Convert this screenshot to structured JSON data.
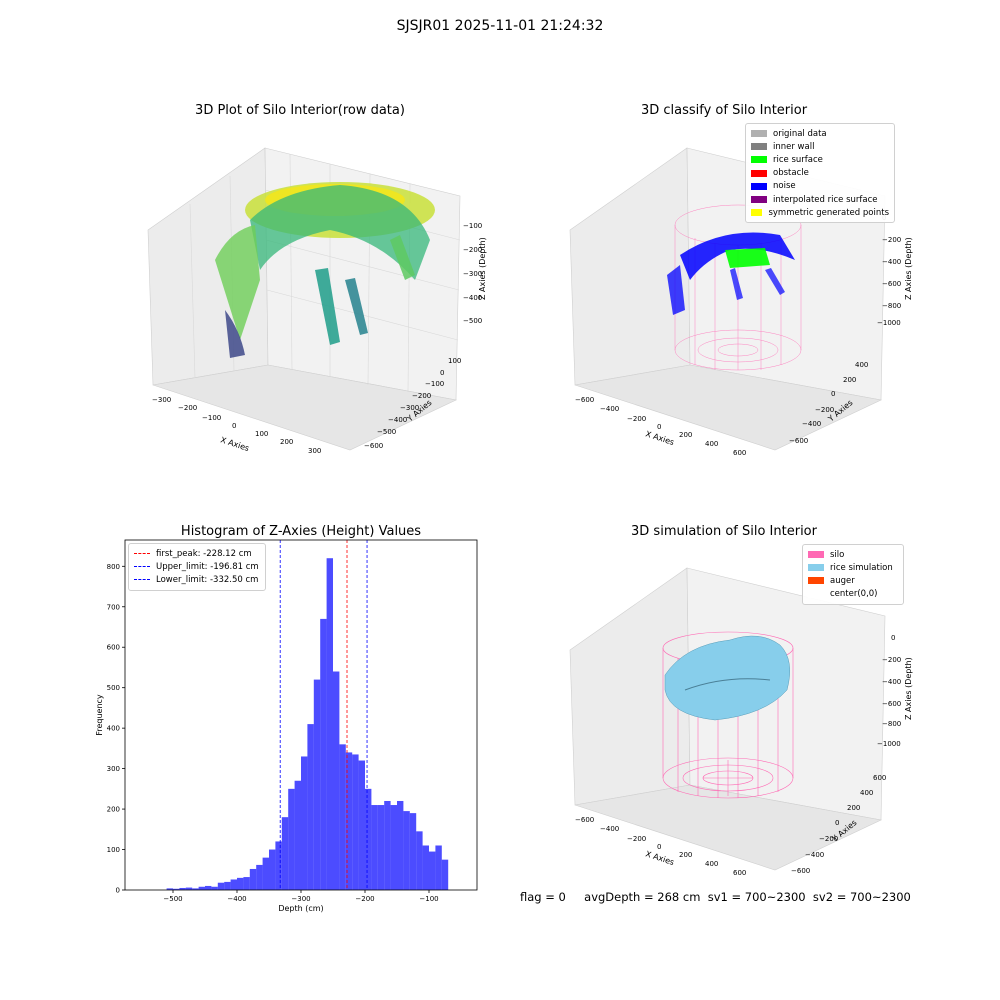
{
  "figure": {
    "suptitle": "SJSJR01 2025-11-01 21:24:32"
  },
  "plot1": {
    "title": "3D Plot of Silo Interior(row data)",
    "xlabel": "X Axies",
    "ylabel": "Y Axies",
    "zlabel": "Z Axies (Depth)",
    "x_ticks": [
      "−300",
      "−200",
      "−100",
      "0",
      "100",
      "200",
      "300"
    ],
    "y_ticks": [
      "100",
      "0",
      "−100",
      "−200",
      "−300",
      "−400",
      "−500",
      "−600"
    ],
    "z_ticks": [
      "−100",
      "−200",
      "−300",
      "−400",
      "−500"
    ]
  },
  "plot2": {
    "title": "3D classify of Silo Interior",
    "xlabel": "X Axies",
    "ylabel": "Y Axies",
    "zlabel": "Z Axies (Depth)",
    "x_ticks": [
      "−600",
      "−400",
      "−200",
      "0",
      "200",
      "400",
      "600"
    ],
    "y_ticks": [
      "400",
      "200",
      "0",
      "−200",
      "−400",
      "−600"
    ],
    "z_ticks": [
      "0",
      "−200",
      "−400",
      "−600",
      "−800",
      "−1000"
    ],
    "legend": [
      {
        "label": "original data",
        "color": "#b0b0b0"
      },
      {
        "label": "inner wall",
        "color": "#808080"
      },
      {
        "label": "rice surface",
        "color": "#00ff00"
      },
      {
        "label": "obstacle",
        "color": "#ff0000"
      },
      {
        "label": "noise",
        "color": "#0000ff"
      },
      {
        "label": "interpolated rice surface",
        "color": "#800080"
      },
      {
        "label": "symmetric generated points",
        "color": "#ffff00"
      }
    ]
  },
  "plot4": {
    "title": "3D simulation of Silo Interior",
    "xlabel": "X Axies",
    "ylabel": "Y Axies",
    "zlabel": "Z Axies (Depth)",
    "x_ticks": [
      "−600",
      "−400",
      "−200",
      "0",
      "200",
      "400",
      "600"
    ],
    "y_ticks": [
      "600",
      "400",
      "200",
      "0",
      "−200",
      "−400",
      "−600"
    ],
    "z_ticks": [
      "0",
      "−200",
      "−400",
      "−600",
      "−800",
      "−1000"
    ],
    "legend": [
      {
        "label": "silo",
        "color": "#ff69b4"
      },
      {
        "label": "rice simulation",
        "color": "#87ceeb"
      },
      {
        "label": "auger",
        "color": "#ff4500"
      },
      {
        "label": "center(0,0)",
        "color": "#ffffff"
      }
    ]
  },
  "footer": {
    "flag": "flag = 0",
    "stats": "avgDepth = 268 cm  sv1 = 700~2300  sv2 = 700~2300"
  },
  "chart_data": [
    {
      "type": "bar",
      "title": "Histogram of Z-Axies (Height) Values",
      "xlabel": "Depth (cm)",
      "ylabel": "Frequency",
      "xlim": [
        -575,
        -25
      ],
      "ylim": [
        0,
        865
      ],
      "x_ticks": [
        -500,
        -400,
        -300,
        -200,
        -100
      ],
      "y_ticks": [
        0,
        100,
        200,
        300,
        400,
        500,
        600,
        700,
        800
      ],
      "bin_start": -510,
      "bin_width": 10,
      "values": [
        4,
        3,
        5,
        6,
        4,
        8,
        10,
        8,
        18,
        20,
        26,
        30,
        32,
        52,
        62,
        80,
        100,
        120,
        180,
        250,
        270,
        330,
        410,
        520,
        670,
        820,
        540,
        360,
        340,
        335,
        320,
        250,
        210,
        210,
        220,
        210,
        220,
        195,
        190,
        145,
        110,
        95,
        110,
        75
      ],
      "color": "#0000ff",
      "lines": [
        {
          "name": "first_peak: -228.12 cm",
          "x": -228.12,
          "color": "#ff0000"
        },
        {
          "name": "Upper_limit: -196.81 cm",
          "x": -196.81,
          "color": "#0000ff"
        },
        {
          "name": "Lower_limit: -332.50 cm",
          "x": -332.5,
          "color": "#0000ff"
        }
      ],
      "legend_position": "top-left"
    }
  ]
}
